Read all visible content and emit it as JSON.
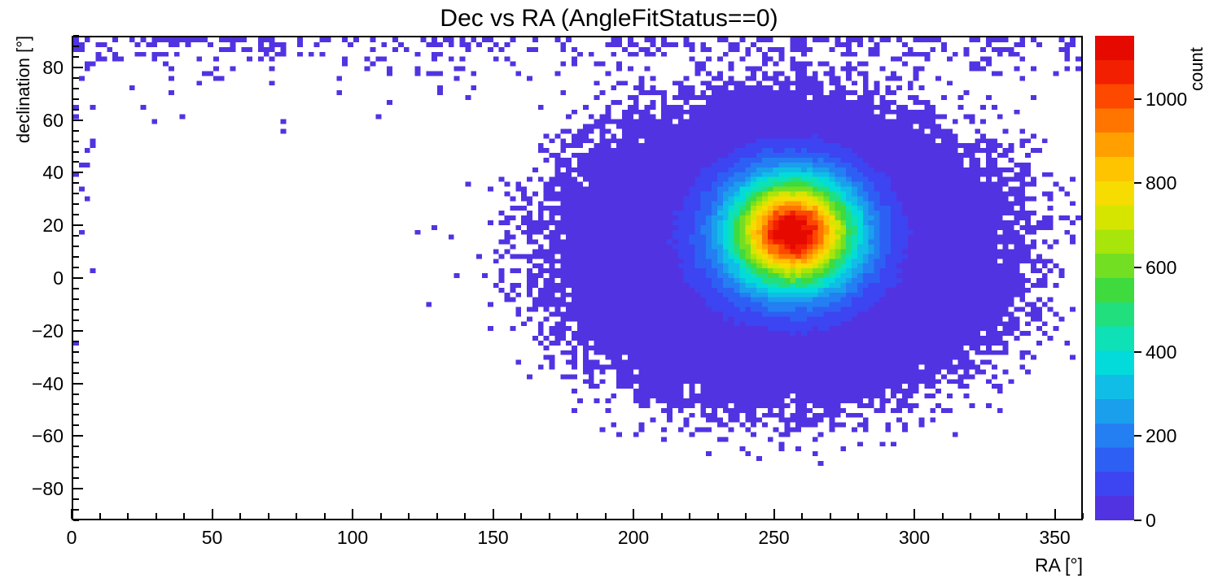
{
  "title": "Dec vs RA (AngleFitStatus==0)",
  "x_axis": {
    "title": "RA [°]",
    "min": 0,
    "max": 360,
    "major_ticks": [
      0,
      50,
      100,
      150,
      200,
      250,
      300,
      350
    ],
    "labels": [
      "0",
      "50",
      "100",
      "150",
      "200",
      "250",
      "300",
      "350"
    ],
    "minor_step": 10
  },
  "y_axis": {
    "title": "declination [°]",
    "min": -92,
    "max": 92,
    "major_ticks": [
      80,
      60,
      40,
      20,
      0,
      -20,
      -40,
      -60,
      -80
    ],
    "labels": [
      "80",
      "60",
      "40",
      "20",
      "0",
      "−20",
      "−40",
      "−60",
      "−80"
    ],
    "minor_step": 4
  },
  "colorbar": {
    "title": "count",
    "min": 0,
    "max": 1150,
    "ticks": [
      0,
      200,
      400,
      600,
      800,
      1000
    ],
    "levels": 20,
    "palette": [
      "#5b2bd9",
      "#3f3ff0",
      "#2b63f5",
      "#1e90f0",
      "#12b8e8",
      "#00e0d8",
      "#16e2a0",
      "#35d943",
      "#7ce01e",
      "#c3e800",
      "#f5e000",
      "#ffc000",
      "#ff8c00",
      "#ff4f00",
      "#f01800",
      "#e00000"
    ]
  },
  "chart_data": {
    "type": "heatmap",
    "title": "Dec vs RA (AngleFitStatus==0)",
    "xlabel": "RA [°]",
    "ylabel": "declination [°]",
    "zlabel": "count",
    "xlim": [
      0,
      360
    ],
    "ylim": [
      -92,
      92
    ],
    "zlim": [
      0,
      1150
    ],
    "bins": {
      "x": 180,
      "y": 100
    },
    "levels": 20,
    "peak": {
      "ra": 257,
      "dec": 18,
      "count": 1100
    },
    "seed": 1337,
    "components": {
      "core": {
        "ra": 257,
        "dec": 17.5,
        "sigma_ra": 15.5,
        "sigma_dec": 14.5,
        "peak": 1125
      },
      "halo": {
        "ra": 253,
        "dec": 10,
        "sigma_ra": 42,
        "sigma_dec": 30,
        "peak": 45,
        "exponent": 1.35
      },
      "polar_band": {
        "rate": 0.5,
        "scale_deg": 6.5
      },
      "left_edge": {
        "ra_width": 8,
        "rate": 0.08,
        "dec_min": -25
      }
    }
  }
}
